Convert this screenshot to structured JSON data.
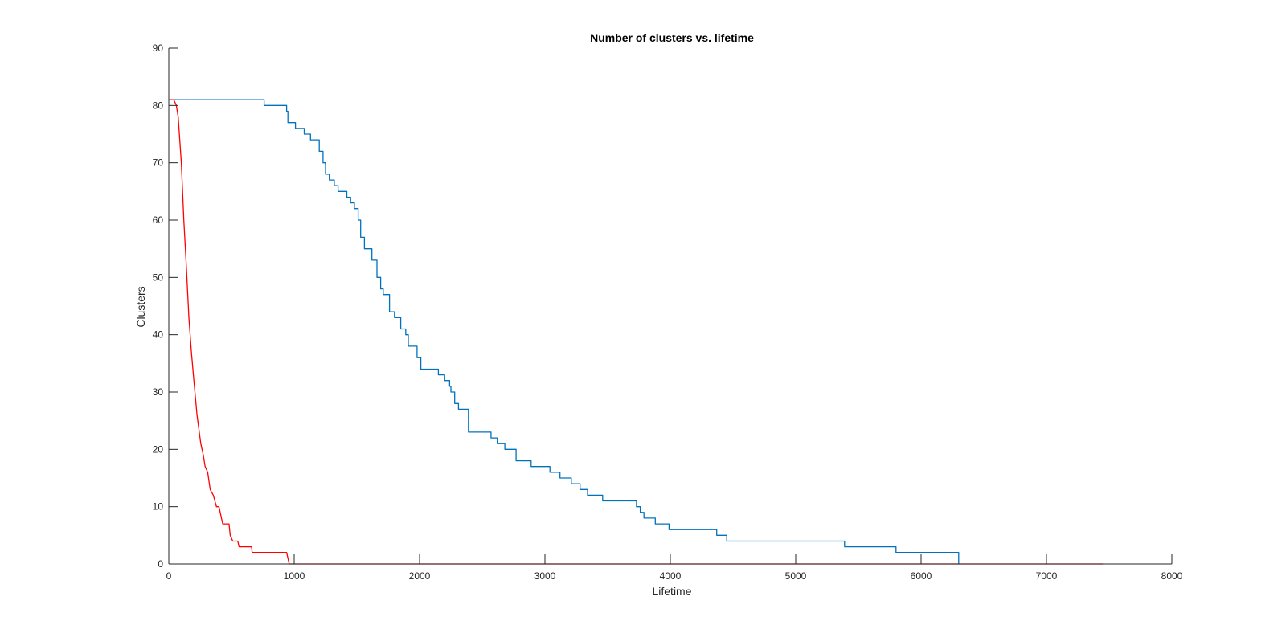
{
  "chart_data": {
    "type": "line",
    "title": "Number of clusters vs. lifetime",
    "xlabel": "Lifetime",
    "ylabel": "Clusters",
    "xlim": [
      0,
      8000
    ],
    "ylim": [
      0,
      90
    ],
    "xticks": [
      0,
      1000,
      2000,
      3000,
      4000,
      5000,
      6000,
      7000,
      8000
    ],
    "yticks": [
      0,
      10,
      20,
      30,
      40,
      50,
      60,
      70,
      80,
      90
    ],
    "xtick_labels": [
      "0",
      "1000",
      "2000",
      "3000",
      "4000",
      "5000",
      "6000",
      "7000",
      "8000"
    ],
    "ytick_labels": [
      "0",
      "10",
      "20",
      "30",
      "40",
      "50",
      "60",
      "70",
      "80",
      "90"
    ],
    "grid": false,
    "series": [
      {
        "color": "#0072BD",
        "step": true,
        "points": [
          [
            0,
            81
          ],
          [
            750,
            81
          ],
          [
            760,
            80
          ],
          [
            920,
            80
          ],
          [
            940,
            79
          ],
          [
            950,
            77
          ],
          [
            1000,
            77
          ],
          [
            1010,
            76
          ],
          [
            1060,
            76
          ],
          [
            1080,
            75
          ],
          [
            1120,
            75
          ],
          [
            1130,
            74
          ],
          [
            1180,
            74
          ],
          [
            1200,
            72
          ],
          [
            1230,
            70
          ],
          [
            1250,
            68
          ],
          [
            1280,
            67
          ],
          [
            1320,
            66
          ],
          [
            1350,
            65
          ],
          [
            1400,
            65
          ],
          [
            1420,
            64
          ],
          [
            1450,
            63
          ],
          [
            1480,
            62
          ],
          [
            1510,
            60
          ],
          [
            1530,
            57
          ],
          [
            1560,
            55
          ],
          [
            1600,
            55
          ],
          [
            1620,
            53
          ],
          [
            1660,
            50
          ],
          [
            1690,
            48
          ],
          [
            1710,
            47
          ],
          [
            1740,
            47
          ],
          [
            1760,
            44
          ],
          [
            1800,
            43
          ],
          [
            1830,
            43
          ],
          [
            1850,
            41
          ],
          [
            1890,
            40
          ],
          [
            1910,
            38
          ],
          [
            1950,
            38
          ],
          [
            1980,
            36
          ],
          [
            2010,
            34
          ],
          [
            2130,
            34
          ],
          [
            2150,
            33
          ],
          [
            2180,
            33
          ],
          [
            2200,
            32
          ],
          [
            2240,
            31
          ],
          [
            2250,
            30
          ],
          [
            2280,
            28
          ],
          [
            2310,
            27
          ],
          [
            2370,
            27
          ],
          [
            2390,
            23
          ],
          [
            2550,
            23
          ],
          [
            2570,
            22
          ],
          [
            2600,
            22
          ],
          [
            2620,
            21
          ],
          [
            2660,
            21
          ],
          [
            2680,
            20
          ],
          [
            2740,
            20
          ],
          [
            2770,
            18
          ],
          [
            2870,
            18
          ],
          [
            2890,
            17
          ],
          [
            3020,
            17
          ],
          [
            3040,
            16
          ],
          [
            3100,
            16
          ],
          [
            3120,
            15
          ],
          [
            3190,
            15
          ],
          [
            3210,
            14
          ],
          [
            3270,
            14
          ],
          [
            3280,
            13
          ],
          [
            3330,
            13
          ],
          [
            3340,
            12
          ],
          [
            3450,
            12
          ],
          [
            3460,
            11
          ],
          [
            3710,
            11
          ],
          [
            3730,
            10
          ],
          [
            3760,
            9
          ],
          [
            3790,
            8
          ],
          [
            3870,
            8
          ],
          [
            3880,
            7
          ],
          [
            3980,
            7
          ],
          [
            3990,
            6
          ],
          [
            4350,
            6
          ],
          [
            4370,
            5
          ],
          [
            4430,
            5
          ],
          [
            4450,
            4
          ],
          [
            5380,
            4
          ],
          [
            5390,
            3
          ],
          [
            5780,
            3
          ],
          [
            5800,
            2
          ],
          [
            6280,
            2
          ],
          [
            6300,
            0
          ]
        ]
      },
      {
        "color": "#FF0000",
        "step": false,
        "points": [
          [
            0,
            81
          ],
          [
            40,
            81
          ],
          [
            60,
            80
          ],
          [
            75,
            78
          ],
          [
            100,
            70
          ],
          [
            120,
            60
          ],
          [
            140,
            52
          ],
          [
            160,
            43
          ],
          [
            180,
            37
          ],
          [
            200,
            32
          ],
          [
            225,
            26
          ],
          [
            255,
            21
          ],
          [
            275,
            19
          ],
          [
            290,
            17
          ],
          [
            310,
            16
          ],
          [
            330,
            13
          ],
          [
            355,
            12
          ],
          [
            380,
            10
          ],
          [
            400,
            10
          ],
          [
            420,
            8
          ],
          [
            430,
            7
          ],
          [
            480,
            7
          ],
          [
            490,
            5
          ],
          [
            510,
            4
          ],
          [
            550,
            4
          ],
          [
            560,
            3
          ],
          [
            660,
            3
          ],
          [
            665,
            2
          ],
          [
            940,
            2
          ],
          [
            960,
            0
          ],
          [
            7450,
            0
          ]
        ]
      }
    ]
  }
}
